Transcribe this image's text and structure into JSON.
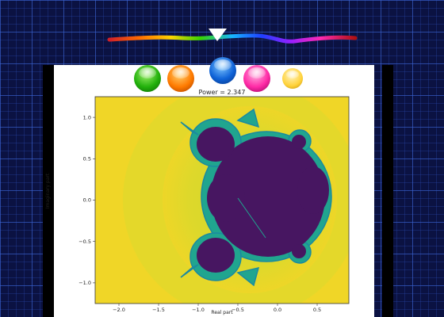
{
  "app": {
    "hue_slider": {
      "colors": [
        "#d0202a",
        "#ff6a00",
        "#ffd400",
        "#37d400",
        "#17b5ff",
        "#1f3fff",
        "#9a1fff",
        "#ff2ab0",
        "#b01010"
      ]
    },
    "color_swatches": [
      {
        "name": "green",
        "color": "#22b10c"
      },
      {
        "name": "orange",
        "color": "#ff7b00"
      },
      {
        "name": "blue",
        "color": "#0f63d8"
      },
      {
        "name": "pink",
        "color": "#ff2aa6"
      },
      {
        "name": "yellow",
        "color": "#ffd23a"
      }
    ],
    "selected_swatch": "blue"
  },
  "plot": {
    "title": "Power = 2.347",
    "xlabel": "Real part",
    "ylabel": "Imaginary part",
    "x_ticks": [
      "−2.0",
      "−1.5",
      "−1.0",
      "−0.5",
      "0.0",
      "0.5"
    ],
    "y_ticks": [
      "1.0",
      "0.5",
      "0.0",
      "−0.5",
      "−1.0"
    ],
    "xlim": [
      -2.3,
      0.9
    ],
    "ylim": [
      -1.25,
      1.25
    ],
    "colors": {
      "outside": "#f0d627",
      "halo": "#cfd62e",
      "edge": "#20a58f",
      "inside": "#471661"
    }
  }
}
